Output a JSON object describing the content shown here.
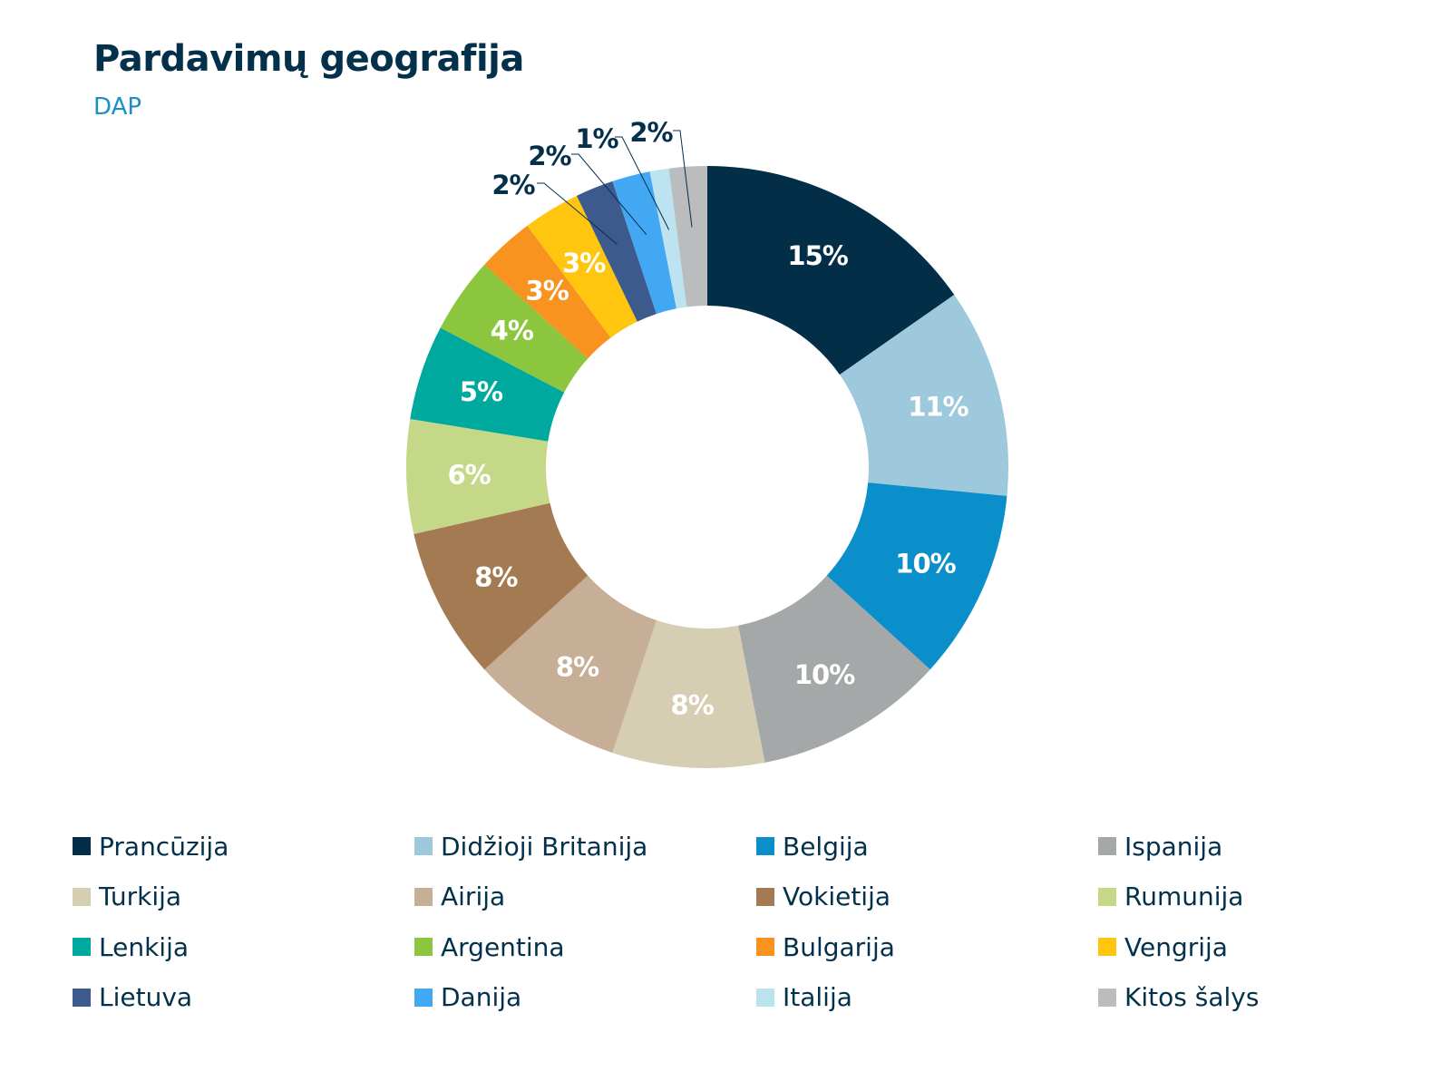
{
  "title": "Pardavimų geografija",
  "subtitle": "DAP",
  "chart_data": {
    "type": "pie",
    "title": "Pardavimų geografija",
    "subtitle": "DAP",
    "donut": true,
    "legend_position": "bottom",
    "value_labels_suffix": "%",
    "slices": [
      {
        "name": "Prancūzija",
        "value": 15,
        "label": "15%",
        "color": "#022f47"
      },
      {
        "name": "Didžioji Britanija",
        "value": 11,
        "label": "11%",
        "color": "#9ec8dc"
      },
      {
        "name": "Belgija",
        "value": 10,
        "label": "10%",
        "color": "#0a8fcb"
      },
      {
        "name": "Ispanija",
        "value": 10,
        "label": "10%",
        "color": "#a5a8a9"
      },
      {
        "name": "Turkija",
        "value": 8,
        "label": "8%",
        "color": "#d6ceb3"
      },
      {
        "name": "Airija",
        "value": 8,
        "label": "8%",
        "color": "#c7af97"
      },
      {
        "name": "Vokietija",
        "value": 8,
        "label": "8%",
        "color": "#a47a53"
      },
      {
        "name": "Rumunija",
        "value": 6,
        "label": "6%",
        "color": "#c5d888"
      },
      {
        "name": "Lenkija",
        "value": 5,
        "label": "5%",
        "color": "#00a99d"
      },
      {
        "name": "Argentina",
        "value": 4,
        "label": "4%",
        "color": "#8cc63f"
      },
      {
        "name": "Bulgarija",
        "value": 3,
        "label": "3%",
        "color": "#f7931e"
      },
      {
        "name": "Vengrija",
        "value": 3,
        "label": "3%",
        "color": "#ffc50f"
      },
      {
        "name": "Lietuva",
        "value": 2,
        "label": "2%",
        "color": "#3c5a8b"
      },
      {
        "name": "Danija",
        "value": 2,
        "label": "2%",
        "color": "#43a8f3"
      },
      {
        "name": "Italija",
        "value": 1,
        "label": "1%",
        "color": "#bde2f0"
      },
      {
        "name": "Kitos šalys",
        "value": 2,
        "label": "2%",
        "color": "#babcbe"
      }
    ]
  }
}
